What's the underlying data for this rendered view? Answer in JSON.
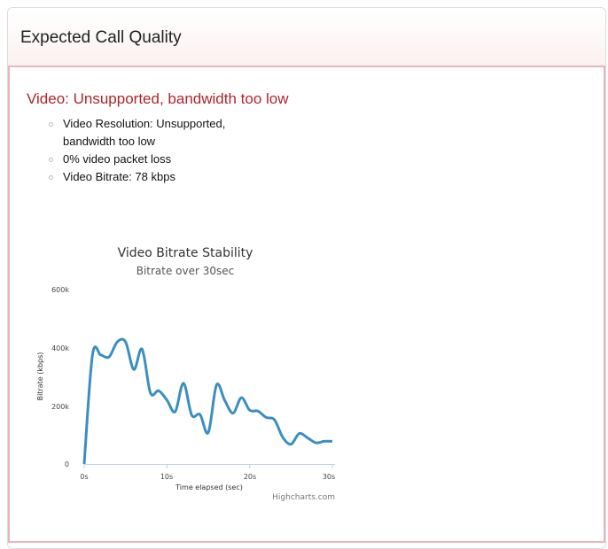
{
  "header": {
    "title": "Expected Call Quality"
  },
  "video": {
    "status": "Video: Unsupported, bandwidth too low",
    "details": [
      "Video Resolution: Unsupported, bandwidth too low",
      "0% video packet loss",
      "Video Bitrate: 78 kbps"
    ]
  },
  "colors": {
    "status": "#b0242a",
    "series": "#3a8fc0",
    "border": "#e8b5bb"
  },
  "chart_data": {
    "type": "line",
    "title": "Video Bitrate Stability",
    "subtitle": "Bitrate over 30sec",
    "xlabel": "Time elapsed (sec)",
    "ylabel": "Bitrate (kbps)",
    "xlim": [
      0,
      30
    ],
    "ylim": [
      0,
      600000
    ],
    "x_ticks": [
      "0s",
      "10s",
      "20s",
      "30s"
    ],
    "y_ticks": [
      "0",
      "200k",
      "400k",
      "600k"
    ],
    "credits": "Highcharts.com",
    "grid": false,
    "x": [
      0,
      1,
      2,
      3,
      4,
      5,
      6,
      7,
      8,
      9,
      10,
      11,
      12,
      13,
      14,
      15,
      16,
      17,
      18,
      19,
      20,
      21,
      22,
      23,
      24,
      25,
      26,
      27,
      28,
      29,
      30
    ],
    "values": [
      0,
      375000,
      375000,
      368000,
      420000,
      420000,
      325000,
      395000,
      245000,
      252000,
      220000,
      180000,
      278000,
      168000,
      170000,
      108000,
      272000,
      218000,
      175000,
      228000,
      185000,
      182000,
      160000,
      152000,
      92000,
      68000,
      105000,
      90000,
      73000,
      78000,
      78000
    ]
  }
}
